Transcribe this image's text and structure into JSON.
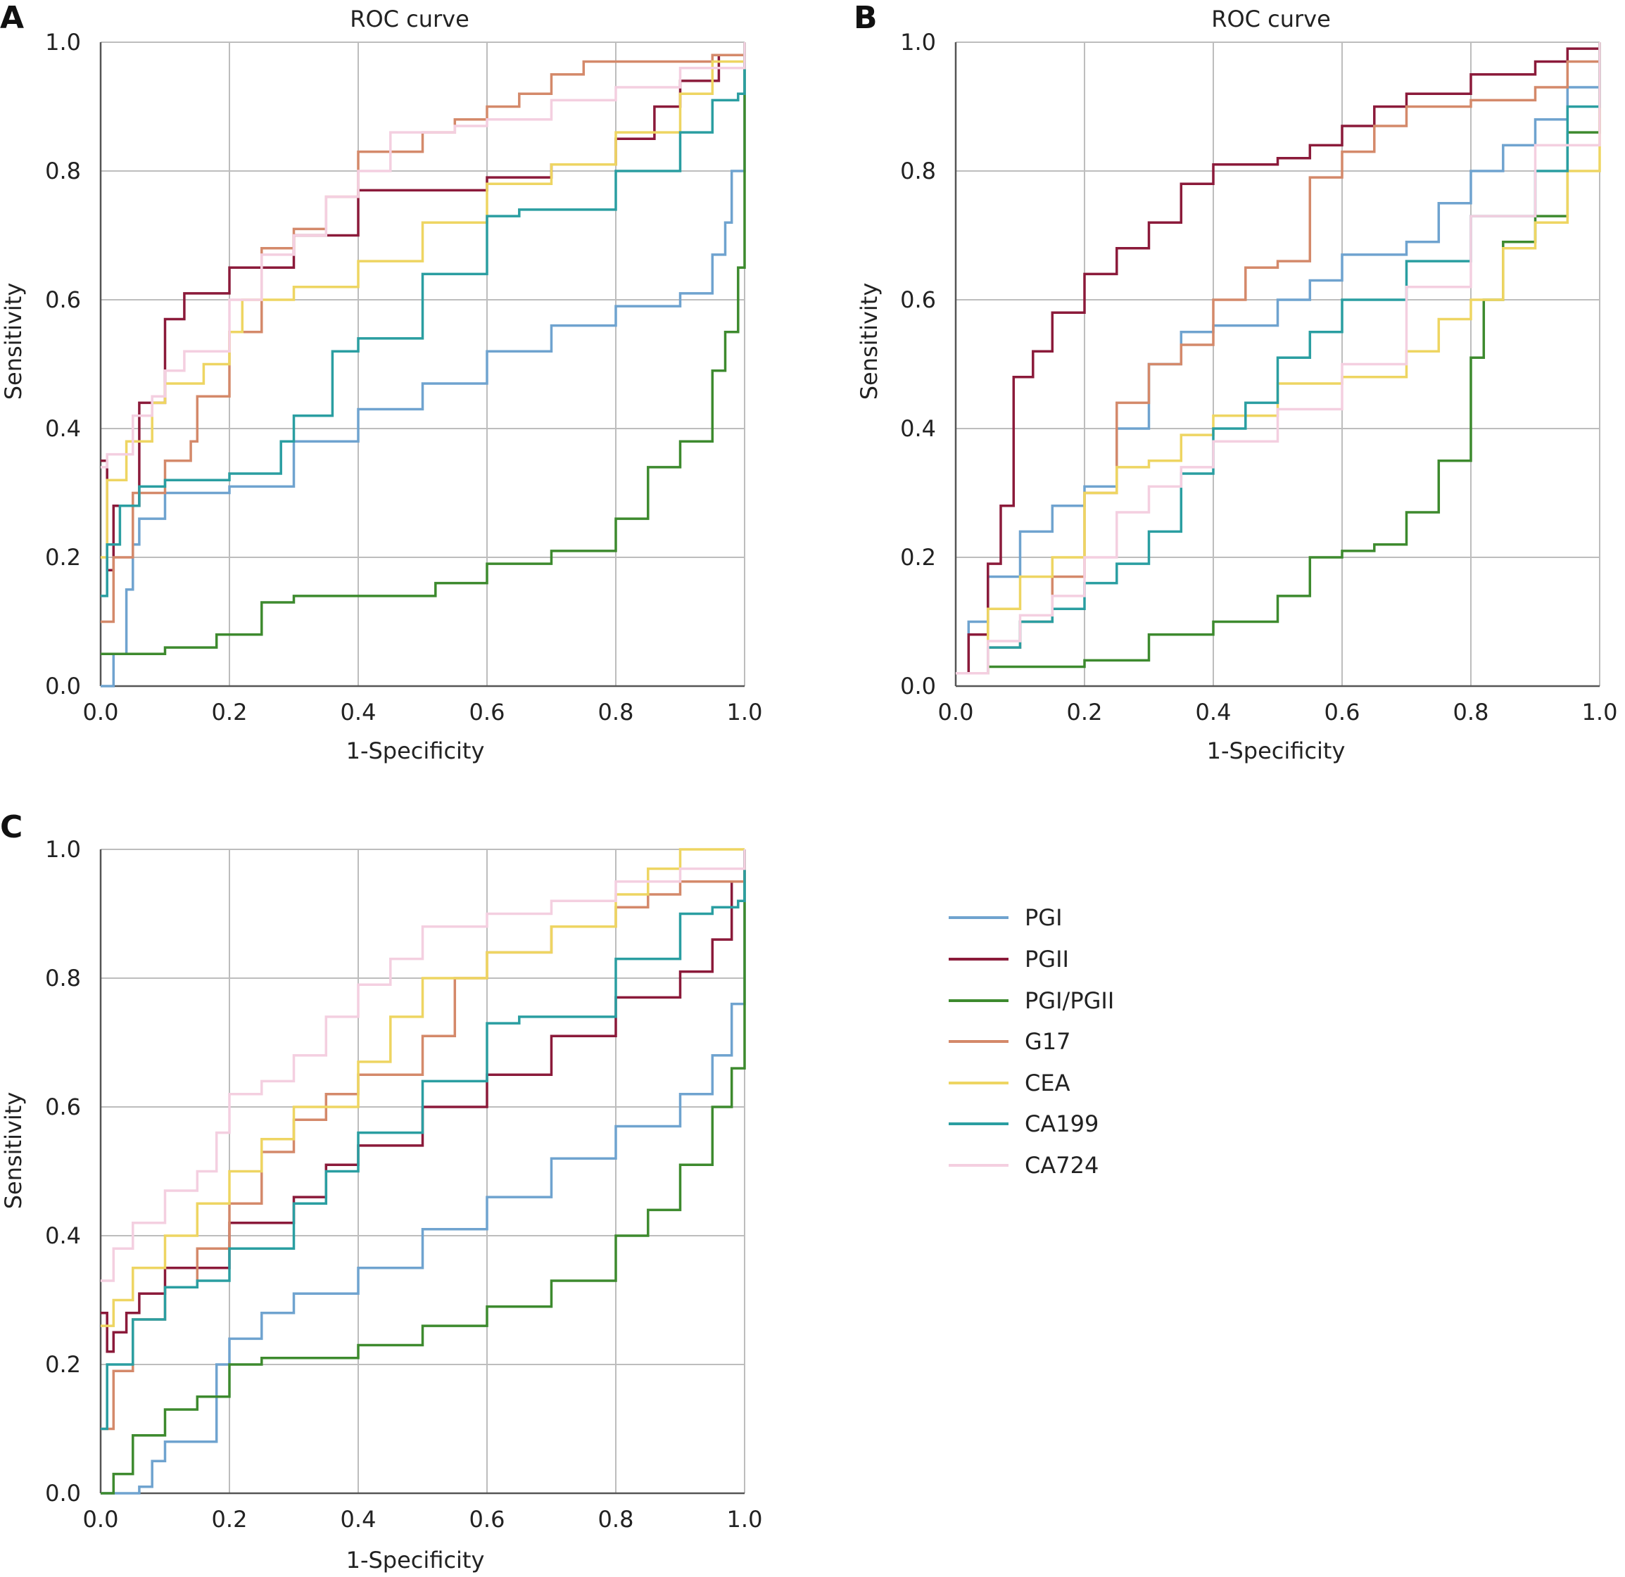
{
  "legend": {
    "items": [
      {
        "label": "PGI",
        "color": "#6fa3cf"
      },
      {
        "label": "PGII",
        "color": "#8b1a3a"
      },
      {
        "label": "PGI/PGII",
        "color": "#3d8a2e"
      },
      {
        "label": "G17",
        "color": "#d4896a"
      },
      {
        "label": "CEA",
        "color": "#eed562"
      },
      {
        "label": "CA199",
        "color": "#2a9ea1"
      },
      {
        "label": "CA724",
        "color": "#f4cfe0"
      }
    ]
  },
  "chart_data": [
    {
      "panel": "A",
      "type": "line",
      "title": "ROC curve",
      "xlabel": "1-Specificity",
      "ylabel": "Sensitivity",
      "xlim": [
        0,
        1
      ],
      "ylim": [
        0,
        1
      ],
      "xticks": [
        "0.0",
        "0.2",
        "0.4",
        "0.6",
        "0.8",
        "1.0"
      ],
      "yticks": [
        "0.0",
        "0.2",
        "0.4",
        "0.6",
        "0.8",
        "1.0"
      ],
      "grid": true,
      "series": [
        {
          "name": "PGI",
          "x": [
            0.0,
            0.02,
            0.02,
            0.04,
            0.05,
            0.06,
            0.1,
            0.2,
            0.3,
            0.4,
            0.5,
            0.6,
            0.7,
            0.8,
            0.9,
            0.95,
            0.97,
            0.98,
            1.0
          ],
          "y": [
            0.0,
            0.0,
            0.05,
            0.15,
            0.22,
            0.26,
            0.3,
            0.31,
            0.38,
            0.43,
            0.47,
            0.52,
            0.56,
            0.59,
            0.61,
            0.67,
            0.72,
            0.8,
            1.0
          ]
        },
        {
          "name": "PGII",
          "x": [
            0.0,
            0.01,
            0.02,
            0.06,
            0.1,
            0.13,
            0.2,
            0.3,
            0.4,
            0.5,
            0.6,
            0.7,
            0.8,
            0.86,
            0.9,
            0.96,
            1.0
          ],
          "y": [
            0.35,
            0.18,
            0.28,
            0.44,
            0.57,
            0.61,
            0.65,
            0.7,
            0.77,
            0.77,
            0.79,
            0.81,
            0.85,
            0.9,
            0.94,
            0.98,
            1.0
          ]
        },
        {
          "name": "PGI/PGII",
          "x": [
            0.0,
            0.1,
            0.18,
            0.25,
            0.3,
            0.4,
            0.52,
            0.6,
            0.7,
            0.8,
            0.85,
            0.9,
            0.95,
            0.97,
            0.99,
            1.0
          ],
          "y": [
            0.05,
            0.06,
            0.08,
            0.13,
            0.14,
            0.14,
            0.16,
            0.19,
            0.21,
            0.26,
            0.34,
            0.38,
            0.49,
            0.55,
            0.65,
            1.0
          ]
        },
        {
          "name": "G17",
          "x": [
            0.0,
            0.02,
            0.05,
            0.1,
            0.14,
            0.15,
            0.2,
            0.25,
            0.3,
            0.35,
            0.4,
            0.5,
            0.55,
            0.6,
            0.65,
            0.7,
            0.75,
            0.85,
            0.95,
            1.0
          ],
          "y": [
            0.1,
            0.2,
            0.3,
            0.35,
            0.38,
            0.45,
            0.55,
            0.68,
            0.71,
            0.76,
            0.83,
            0.86,
            0.88,
            0.9,
            0.92,
            0.95,
            0.97,
            0.97,
            0.98,
            1.0
          ]
        },
        {
          "name": "CEA",
          "x": [
            0.0,
            0.01,
            0.04,
            0.08,
            0.1,
            0.16,
            0.2,
            0.22,
            0.3,
            0.4,
            0.5,
            0.6,
            0.7,
            0.8,
            0.9,
            0.95,
            1.0
          ],
          "y": [
            0.2,
            0.32,
            0.38,
            0.44,
            0.47,
            0.5,
            0.55,
            0.6,
            0.62,
            0.66,
            0.72,
            0.78,
            0.81,
            0.86,
            0.92,
            0.97,
            1.0
          ]
        },
        {
          "name": "CA199",
          "x": [
            0.0,
            0.01,
            0.03,
            0.06,
            0.1,
            0.2,
            0.28,
            0.3,
            0.36,
            0.4,
            0.5,
            0.6,
            0.65,
            0.8,
            0.9,
            0.95,
            0.99,
            1.0
          ],
          "y": [
            0.14,
            0.22,
            0.28,
            0.31,
            0.32,
            0.33,
            0.38,
            0.42,
            0.52,
            0.54,
            0.64,
            0.73,
            0.74,
            0.8,
            0.86,
            0.91,
            0.92,
            1.0
          ]
        },
        {
          "name": "CA724",
          "x": [
            0.0,
            0.01,
            0.05,
            0.08,
            0.1,
            0.13,
            0.2,
            0.25,
            0.3,
            0.35,
            0.4,
            0.45,
            0.5,
            0.55,
            0.6,
            0.7,
            0.8,
            0.9,
            1.0
          ],
          "y": [
            0.34,
            0.36,
            0.42,
            0.45,
            0.49,
            0.52,
            0.6,
            0.67,
            0.7,
            0.76,
            0.8,
            0.86,
            0.86,
            0.87,
            0.88,
            0.91,
            0.93,
            0.96,
            1.0
          ]
        }
      ]
    },
    {
      "panel": "B",
      "type": "line",
      "title": "ROC curve",
      "xlabel": "1-Specificity",
      "ylabel": "Sensitivity",
      "xlim": [
        0,
        1
      ],
      "ylim": [
        0,
        1
      ],
      "xticks": [
        "0.0",
        "0.2",
        "0.4",
        "0.6",
        "0.8",
        "1.0"
      ],
      "yticks": [
        "0.0",
        "0.2",
        "0.4",
        "0.6",
        "0.8",
        "1.0"
      ],
      "grid": true,
      "series": [
        {
          "name": "PGI",
          "x": [
            0.0,
            0.02,
            0.05,
            0.1,
            0.15,
            0.2,
            0.25,
            0.3,
            0.35,
            0.4,
            0.5,
            0.55,
            0.6,
            0.7,
            0.75,
            0.8,
            0.85,
            0.9,
            0.95,
            1.0
          ],
          "y": [
            0.02,
            0.1,
            0.17,
            0.24,
            0.28,
            0.31,
            0.4,
            0.5,
            0.55,
            0.56,
            0.6,
            0.63,
            0.67,
            0.69,
            0.75,
            0.8,
            0.84,
            0.88,
            0.93,
            1.0
          ]
        },
        {
          "name": "PGII",
          "x": [
            0.0,
            0.02,
            0.05,
            0.07,
            0.09,
            0.12,
            0.15,
            0.2,
            0.25,
            0.3,
            0.35,
            0.4,
            0.5,
            0.55,
            0.6,
            0.65,
            0.7,
            0.8,
            0.9,
            0.95,
            1.0
          ],
          "y": [
            0.02,
            0.08,
            0.19,
            0.28,
            0.48,
            0.52,
            0.58,
            0.64,
            0.68,
            0.72,
            0.78,
            0.81,
            0.82,
            0.84,
            0.87,
            0.9,
            0.92,
            0.95,
            0.97,
            0.99,
            1.0
          ]
        },
        {
          "name": "PGI/PGII",
          "x": [
            0.0,
            0.05,
            0.2,
            0.3,
            0.4,
            0.5,
            0.55,
            0.6,
            0.65,
            0.7,
            0.75,
            0.8,
            0.82,
            0.85,
            0.9,
            0.95,
            1.0
          ],
          "y": [
            0.02,
            0.03,
            0.04,
            0.08,
            0.1,
            0.14,
            0.2,
            0.21,
            0.22,
            0.27,
            0.35,
            0.51,
            0.6,
            0.69,
            0.73,
            0.86,
            1.0
          ]
        },
        {
          "name": "G17",
          "x": [
            0.0,
            0.05,
            0.1,
            0.15,
            0.2,
            0.25,
            0.3,
            0.35,
            0.4,
            0.45,
            0.5,
            0.55,
            0.6,
            0.65,
            0.7,
            0.8,
            0.9,
            0.95,
            1.0
          ],
          "y": [
            0.02,
            0.06,
            0.1,
            0.17,
            0.3,
            0.44,
            0.5,
            0.53,
            0.6,
            0.65,
            0.66,
            0.79,
            0.83,
            0.87,
            0.9,
            0.91,
            0.93,
            0.97,
            1.0
          ]
        },
        {
          "name": "CEA",
          "x": [
            0.0,
            0.05,
            0.1,
            0.15,
            0.2,
            0.25,
            0.3,
            0.35,
            0.4,
            0.5,
            0.6,
            0.7,
            0.75,
            0.8,
            0.85,
            0.9,
            0.95,
            1.0
          ],
          "y": [
            0.02,
            0.12,
            0.17,
            0.2,
            0.3,
            0.34,
            0.35,
            0.39,
            0.42,
            0.47,
            0.48,
            0.52,
            0.57,
            0.6,
            0.68,
            0.72,
            0.8,
            1.0
          ]
        },
        {
          "name": "CA199",
          "x": [
            0.0,
            0.05,
            0.1,
            0.15,
            0.2,
            0.25,
            0.3,
            0.35,
            0.4,
            0.45,
            0.5,
            0.55,
            0.6,
            0.7,
            0.8,
            0.9,
            0.95,
            1.0
          ],
          "y": [
            0.02,
            0.06,
            0.1,
            0.12,
            0.16,
            0.19,
            0.24,
            0.33,
            0.4,
            0.44,
            0.51,
            0.55,
            0.6,
            0.66,
            0.73,
            0.8,
            0.9,
            1.0
          ]
        },
        {
          "name": "CA724",
          "x": [
            0.0,
            0.05,
            0.1,
            0.15,
            0.2,
            0.25,
            0.3,
            0.35,
            0.4,
            0.5,
            0.6,
            0.7,
            0.8,
            0.9,
            1.0
          ],
          "y": [
            0.02,
            0.07,
            0.11,
            0.14,
            0.2,
            0.27,
            0.31,
            0.34,
            0.38,
            0.43,
            0.5,
            0.62,
            0.73,
            0.84,
            1.0
          ]
        }
      ]
    },
    {
      "panel": "C",
      "type": "line",
      "title": "",
      "xlabel": "1-Specificity",
      "ylabel": "Sensitivity",
      "xlim": [
        0,
        1
      ],
      "ylim": [
        0,
        1
      ],
      "xticks": [
        "0.0",
        "0.2",
        "0.4",
        "0.6",
        "0.8",
        "1.0"
      ],
      "yticks": [
        "0.0",
        "0.2",
        "0.4",
        "0.6",
        "0.8",
        "1.0"
      ],
      "grid": true,
      "series": [
        {
          "name": "PGI",
          "x": [
            0.0,
            0.02,
            0.06,
            0.08,
            0.1,
            0.13,
            0.17,
            0.18,
            0.2,
            0.25,
            0.3,
            0.4,
            0.5,
            0.6,
            0.7,
            0.8,
            0.9,
            0.95,
            0.98,
            1.0
          ],
          "y": [
            0.0,
            0.0,
            0.01,
            0.05,
            0.08,
            0.08,
            0.08,
            0.2,
            0.24,
            0.28,
            0.31,
            0.35,
            0.41,
            0.46,
            0.52,
            0.57,
            0.62,
            0.68,
            0.76,
            1.0
          ]
        },
        {
          "name": "PGII",
          "x": [
            0.0,
            0.01,
            0.02,
            0.04,
            0.06,
            0.1,
            0.2,
            0.3,
            0.35,
            0.4,
            0.5,
            0.6,
            0.7,
            0.8,
            0.9,
            0.95,
            0.98,
            1.0
          ],
          "y": [
            0.28,
            0.22,
            0.25,
            0.28,
            0.31,
            0.35,
            0.42,
            0.46,
            0.51,
            0.54,
            0.6,
            0.65,
            0.71,
            0.77,
            0.81,
            0.86,
            0.95,
            1.0
          ]
        },
        {
          "name": "PGI/PGII",
          "x": [
            0.0,
            0.02,
            0.05,
            0.1,
            0.15,
            0.2,
            0.25,
            0.3,
            0.4,
            0.5,
            0.6,
            0.7,
            0.8,
            0.85,
            0.9,
            0.95,
            0.98,
            1.0
          ],
          "y": [
            0.0,
            0.03,
            0.09,
            0.13,
            0.15,
            0.2,
            0.21,
            0.21,
            0.23,
            0.26,
            0.29,
            0.33,
            0.4,
            0.44,
            0.51,
            0.6,
            0.66,
            1.0
          ]
        },
        {
          "name": "G17",
          "x": [
            0.0,
            0.02,
            0.05,
            0.1,
            0.15,
            0.2,
            0.25,
            0.3,
            0.35,
            0.4,
            0.5,
            0.55,
            0.6,
            0.7,
            0.8,
            0.85,
            0.9,
            1.0
          ],
          "y": [
            0.1,
            0.19,
            0.27,
            0.32,
            0.38,
            0.45,
            0.53,
            0.58,
            0.62,
            0.65,
            0.71,
            0.8,
            0.84,
            0.88,
            0.91,
            0.93,
            0.95,
            1.0
          ]
        },
        {
          "name": "CEA",
          "x": [
            0.0,
            0.02,
            0.05,
            0.1,
            0.15,
            0.2,
            0.25,
            0.3,
            0.4,
            0.45,
            0.5,
            0.6,
            0.7,
            0.8,
            0.85,
            0.9,
            1.0
          ],
          "y": [
            0.26,
            0.3,
            0.35,
            0.4,
            0.45,
            0.5,
            0.55,
            0.6,
            0.67,
            0.74,
            0.8,
            0.84,
            0.88,
            0.93,
            0.97,
            1.0,
            1.0
          ]
        },
        {
          "name": "CA199",
          "x": [
            0.0,
            0.01,
            0.05,
            0.1,
            0.15,
            0.2,
            0.3,
            0.35,
            0.4,
            0.5,
            0.6,
            0.65,
            0.8,
            0.9,
            0.95,
            0.99,
            1.0
          ],
          "y": [
            0.1,
            0.2,
            0.27,
            0.32,
            0.33,
            0.38,
            0.45,
            0.5,
            0.56,
            0.64,
            0.73,
            0.74,
            0.83,
            0.9,
            0.91,
            0.92,
            1.0
          ]
        },
        {
          "name": "CA724",
          "x": [
            0.0,
            0.02,
            0.05,
            0.1,
            0.15,
            0.18,
            0.2,
            0.25,
            0.3,
            0.35,
            0.4,
            0.45,
            0.5,
            0.6,
            0.7,
            0.8,
            0.9,
            1.0
          ],
          "y": [
            0.33,
            0.38,
            0.42,
            0.47,
            0.5,
            0.56,
            0.62,
            0.64,
            0.68,
            0.74,
            0.79,
            0.83,
            0.88,
            0.9,
            0.92,
            0.95,
            0.97,
            1.0
          ]
        }
      ]
    }
  ]
}
